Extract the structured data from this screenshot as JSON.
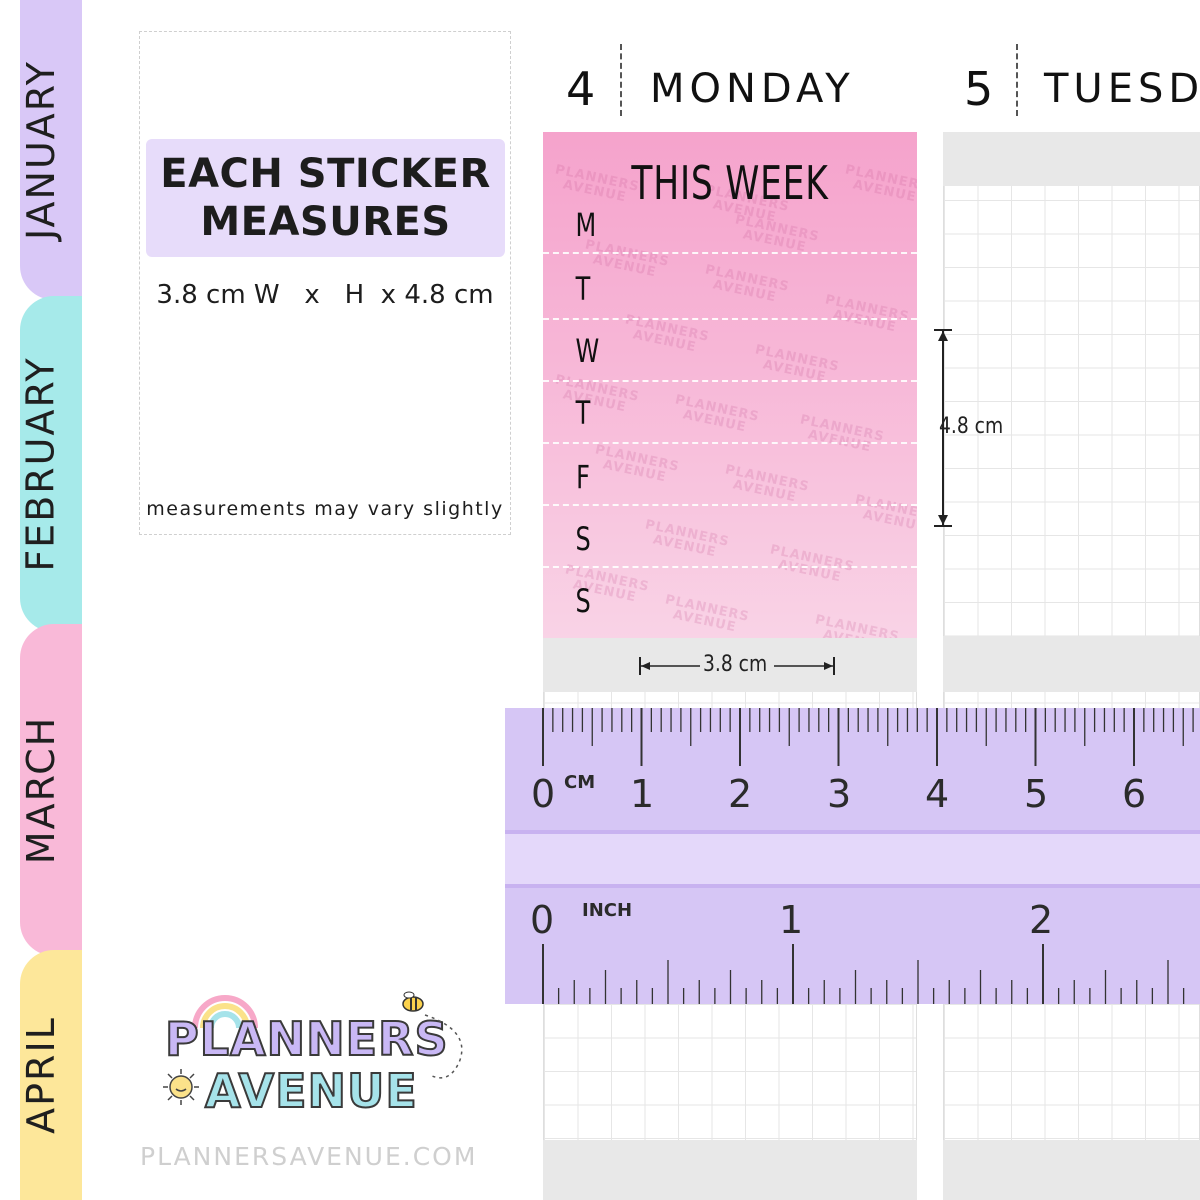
{
  "months": [
    {
      "label": "JANUARY",
      "color": "#d9c8f7"
    },
    {
      "label": "FEBRUARY",
      "color": "#a6eaea"
    },
    {
      "label": "MARCH",
      "color": "#f9b9d8"
    },
    {
      "label": "APRIL",
      "color": "#fde79a"
    }
  ],
  "info": {
    "heading_line1": "EACH STICKER",
    "heading_line2": "MEASURES",
    "dimensions": "3.8 cm W   x   H  x 4.8 cm",
    "note": "measurements may vary slightly"
  },
  "days": [
    {
      "number": "4",
      "name": "MONDAY"
    },
    {
      "number": "5",
      "name": "TUESD"
    }
  ],
  "sticker": {
    "title": "THIS WEEK",
    "day_letters": [
      "M",
      "T",
      "W",
      "T",
      "F",
      "S",
      "S"
    ],
    "watermark_line1": "PLANNERS",
    "watermark_line2": "AVENUE"
  },
  "measurements": {
    "height_label": "4.8 cm",
    "width_label": "3.8 cm"
  },
  "ruler": {
    "cm_unit": "CM",
    "cm_numbers": [
      "0",
      "1",
      "2",
      "3",
      "4",
      "5",
      "6"
    ],
    "inch_unit": "INCH",
    "inch_numbers": [
      "0",
      "1",
      "2"
    ]
  },
  "logo": {
    "line1": "PLANNERS",
    "line2": "AVENUE"
  },
  "website": "PLANNERSAVENUE.COM"
}
